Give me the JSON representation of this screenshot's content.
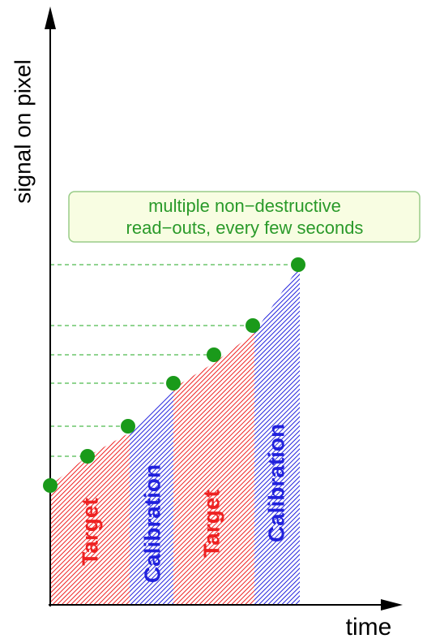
{
  "axes": {
    "y_label": "signal on pixel",
    "x_label": "time"
  },
  "annotation": {
    "lines": [
      "multiple non−destructive",
      "read−outs, every few seconds"
    ]
  },
  "segments": [
    {
      "label": "Target"
    },
    {
      "label": "Calibration"
    },
    {
      "label": "Target"
    },
    {
      "label": "Calibration"
    }
  ]
}
